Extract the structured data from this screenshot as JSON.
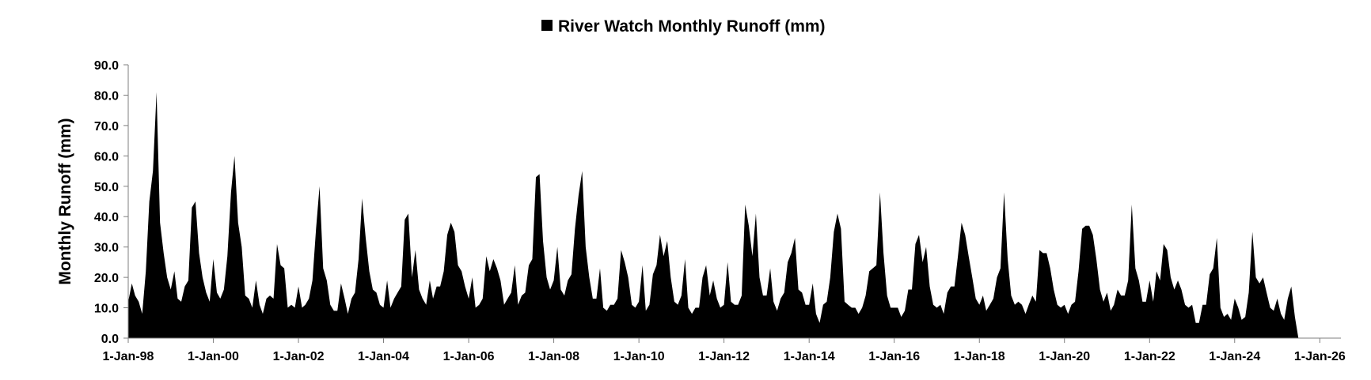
{
  "chart_data": {
    "type": "area",
    "title": "",
    "xlabel": "",
    "ylabel": "Monthly Runoff (mm)",
    "ylim": [
      0,
      90
    ],
    "yticks": [
      "0.0",
      "10.0",
      "20.0",
      "30.0",
      "40.0",
      "50.0",
      "60.0",
      "70.0",
      "80.0",
      "90.0"
    ],
    "xlim": [
      "1998-01-01",
      "2026-07-01"
    ],
    "xticks": [
      {
        "date": "1998-01-01",
        "label": "1-Jan-98"
      },
      {
        "date": "2000-01-01",
        "label": "1-Jan-00"
      },
      {
        "date": "2002-01-01",
        "label": "1-Jan-02"
      },
      {
        "date": "2004-01-01",
        "label": "1-Jan-04"
      },
      {
        "date": "2006-01-01",
        "label": "1-Jan-06"
      },
      {
        "date": "2008-01-01",
        "label": "1-Jan-08"
      },
      {
        "date": "2010-01-01",
        "label": "1-Jan-10"
      },
      {
        "date": "2012-01-01",
        "label": "1-Jan-12"
      },
      {
        "date": "2014-01-01",
        "label": "1-Jan-14"
      },
      {
        "date": "2016-01-01",
        "label": "1-Jan-16"
      },
      {
        "date": "2018-01-01",
        "label": "1-Jan-18"
      },
      {
        "date": "2020-01-01",
        "label": "1-Jan-20"
      },
      {
        "date": "2022-01-01",
        "label": "1-Jan-22"
      },
      {
        "date": "2024-01-01",
        "label": "1-Jan-24"
      },
      {
        "date": "2026-01-01",
        "label": "1-Jan-26"
      }
    ],
    "grid": false,
    "legend_position": "top",
    "series": [
      {
        "name": "River Watch Monthly Runoff (mm)",
        "color": "#000000",
        "start": "1998-01",
        "values": [
          12,
          18,
          14,
          12,
          8,
          22,
          45,
          55,
          81,
          38,
          28,
          20,
          16,
          22,
          13,
          12,
          17,
          19,
          43,
          45,
          28,
          20,
          15,
          12,
          26,
          15,
          13,
          16,
          27,
          48,
          60,
          38,
          30,
          14,
          13,
          10,
          19,
          11,
          8,
          13,
          14,
          13,
          31,
          24,
          23,
          10,
          11,
          10,
          17,
          10,
          11,
          13,
          19,
          36,
          50,
          23,
          19,
          11,
          9,
          9,
          18,
          13,
          8,
          13,
          15,
          26,
          46,
          33,
          22,
          16,
          15,
          11,
          10,
          19,
          10,
          13,
          15,
          17,
          39,
          41,
          20,
          29,
          16,
          13,
          11,
          19,
          13,
          17,
          17,
          22,
          34,
          38,
          35,
          24,
          22,
          17,
          13,
          20,
          10,
          11,
          13,
          27,
          22,
          26,
          23,
          19,
          11,
          13,
          15,
          24,
          11,
          14,
          15,
          24,
          26,
          53,
          54,
          32,
          20,
          16,
          19,
          30,
          16,
          14,
          19,
          21,
          36,
          47,
          55,
          30,
          20,
          13,
          13,
          23,
          10,
          9,
          11,
          11,
          13,
          29,
          25,
          20,
          11,
          10,
          12,
          24,
          9,
          11,
          21,
          24,
          34,
          27,
          32,
          20,
          12,
          11,
          14,
          26,
          10,
          8,
          10,
          10,
          20,
          24,
          14,
          19,
          13,
          10,
          11,
          25,
          12,
          11,
          11,
          14,
          44,
          37,
          27,
          41,
          20,
          14,
          14,
          23,
          12,
          9,
          13,
          15,
          25,
          28,
          33,
          16,
          15,
          11,
          11,
          18,
          8,
          5,
          11,
          12,
          20,
          35,
          41,
          36,
          12,
          11,
          10,
          10,
          8,
          10,
          14,
          22,
          23,
          24,
          48,
          28,
          14,
          10,
          10,
          10,
          7,
          9,
          16,
          16,
          31,
          34,
          25,
          30,
          17,
          11,
          10,
          11,
          8,
          15,
          17,
          17,
          27,
          38,
          34,
          27,
          20,
          13,
          11,
          14,
          9,
          11,
          13,
          20,
          23,
          48,
          26,
          14,
          11,
          12,
          11,
          8,
          11,
          14,
          12,
          29,
          28,
          28,
          23,
          16,
          11,
          10,
          11,
          8,
          11,
          12,
          22,
          36,
          37,
          37,
          34,
          26,
          16,
          12,
          15,
          9,
          11,
          16,
          14,
          14,
          19,
          44,
          23,
          19,
          12,
          12,
          19,
          12,
          22,
          19,
          31,
          29,
          20,
          16,
          19,
          16,
          11,
          10,
          11,
          5,
          5,
          11,
          11,
          21,
          23,
          33,
          10,
          7,
          8,
          6,
          13,
          10,
          6,
          7,
          15,
          35,
          20,
          18,
          20,
          15,
          10,
          9,
          13,
          8,
          6,
          13,
          17,
          7,
          0
        ]
      }
    ]
  }
}
